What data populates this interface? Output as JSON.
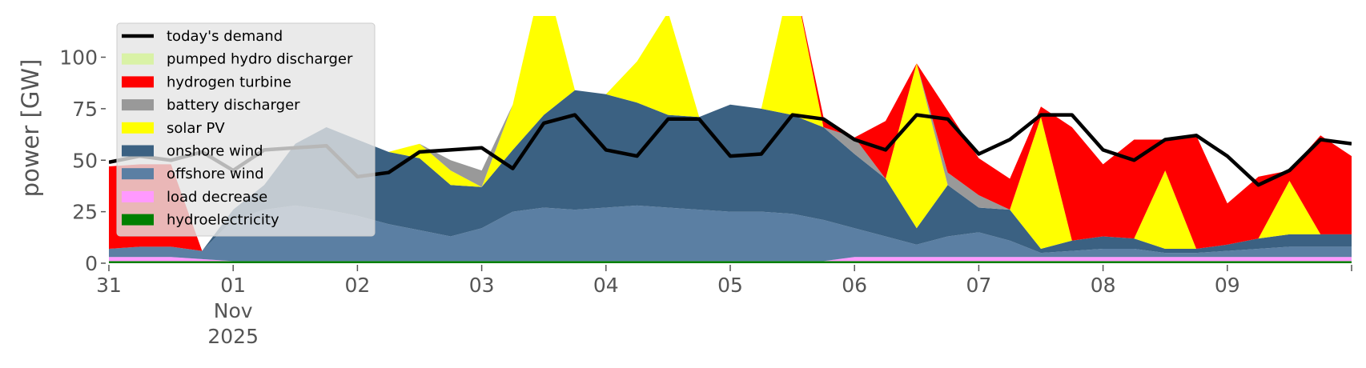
{
  "chart_data": {
    "type": "area",
    "title": "",
    "xlabel": "",
    "ylabel": "power [GW]",
    "ylim": [
      0,
      120
    ],
    "xlim": [
      "2025-10-31T00:00",
      "2025-11-10T00:00"
    ],
    "grid": false,
    "legend_position": "top-left",
    "yticks": [
      0,
      25,
      50,
      75,
      100
    ],
    "xticks": [
      {
        "x": "2025-10-31T00:00",
        "lines": [
          "31"
        ]
      },
      {
        "x": "2025-11-01T00:00",
        "lines": [
          "01",
          "Nov",
          "2025"
        ]
      },
      {
        "x": "2025-11-02T00:00",
        "lines": [
          "02"
        ]
      },
      {
        "x": "2025-11-03T00:00",
        "lines": [
          "03"
        ]
      },
      {
        "x": "2025-11-04T00:00",
        "lines": [
          "04"
        ]
      },
      {
        "x": "2025-11-05T00:00",
        "lines": [
          "05"
        ]
      },
      {
        "x": "2025-11-06T00:00",
        "lines": [
          "06"
        ]
      },
      {
        "x": "2025-11-07T00:00",
        "lines": [
          "07"
        ]
      },
      {
        "x": "2025-11-08T00:00",
        "lines": [
          "08"
        ]
      },
      {
        "x": "2025-11-09T00:00",
        "lines": [
          "09"
        ]
      }
    ],
    "x": [
      "2025-10-31T00:00",
      "2025-10-31T06:00",
      "2025-10-31T12:00",
      "2025-10-31T18:00",
      "2025-11-01T00:00",
      "2025-11-01T06:00",
      "2025-11-01T12:00",
      "2025-11-01T18:00",
      "2025-11-02T00:00",
      "2025-11-02T06:00",
      "2025-11-02T12:00",
      "2025-11-02T18:00",
      "2025-11-03T00:00",
      "2025-11-03T06:00",
      "2025-11-03T12:00",
      "2025-11-03T18:00",
      "2025-11-04T00:00",
      "2025-11-04T06:00",
      "2025-11-04T12:00",
      "2025-11-04T18:00",
      "2025-11-05T00:00",
      "2025-11-05T06:00",
      "2025-11-05T12:00",
      "2025-11-05T18:00",
      "2025-11-06T00:00",
      "2025-11-06T06:00",
      "2025-11-06T12:00",
      "2025-11-06T18:00",
      "2025-11-07T00:00",
      "2025-11-07T06:00",
      "2025-11-07T12:00",
      "2025-11-07T18:00",
      "2025-11-08T00:00",
      "2025-11-08T06:00",
      "2025-11-08T12:00",
      "2025-11-08T18:00",
      "2025-11-09T00:00",
      "2025-11-09T06:00",
      "2025-11-09T12:00",
      "2025-11-09T18:00",
      "2025-11-10T00:00"
    ],
    "series": [
      {
        "name": "hydroelectricity",
        "color": "#008000",
        "values": [
          1,
          1,
          1,
          1,
          1,
          1,
          1,
          1,
          1,
          1,
          1,
          1,
          1,
          1,
          1,
          1,
          1,
          1,
          1,
          1,
          1,
          1,
          1,
          1,
          1,
          1,
          1,
          1,
          1,
          1,
          1,
          1,
          1,
          1,
          1,
          1,
          1,
          1,
          1,
          1,
          1
        ]
      },
      {
        "name": "load decrease",
        "color": "#ff99ff",
        "values": [
          2,
          2,
          2,
          1,
          0,
          0,
          0,
          0,
          0,
          0,
          0,
          0,
          0,
          0,
          0,
          0,
          0,
          0,
          0,
          0,
          0,
          0,
          0,
          0,
          2,
          2,
          2,
          2,
          2,
          2,
          2,
          2,
          2,
          2,
          2,
          2,
          2,
          2,
          2,
          2,
          2
        ]
      },
      {
        "name": "offshore wind",
        "color": "#5b7fa3",
        "values": [
          4,
          5,
          5,
          4,
          20,
          25,
          27,
          25,
          22,
          18,
          15,
          12,
          16,
          24,
          26,
          25,
          26,
          27,
          26,
          25,
          24,
          24,
          23,
          20,
          14,
          10,
          6,
          10,
          12,
          8,
          2,
          3,
          4,
          4,
          2,
          2,
          3,
          4,
          5,
          5,
          5
        ]
      },
      {
        "name": "onshore wind",
        "color": "#3b6182",
        "values": [
          0,
          0,
          0,
          0,
          5,
          12,
          30,
          40,
          37,
          35,
          35,
          25,
          20,
          30,
          45,
          58,
          55,
          50,
          45,
          45,
          52,
          50,
          48,
          45,
          36,
          28,
          8,
          25,
          12,
          15,
          2,
          5,
          6,
          5,
          2,
          2,
          3,
          5,
          6,
          6,
          6
        ]
      },
      {
        "name": "solar PV",
        "color": "#ffff00",
        "values": [
          0,
          0,
          0,
          0,
          0,
          0,
          0,
          0,
          0,
          0,
          7,
          7,
          0,
          22,
          70,
          0,
          0,
          20,
          50,
          0,
          0,
          0,
          70,
          0,
          0,
          0,
          80,
          0,
          0,
          0,
          64,
          0,
          0,
          0,
          38,
          0,
          0,
          0,
          26,
          0,
          0
        ]
      },
      {
        "name": "battery discharger",
        "color": "#999999",
        "values": [
          0,
          0,
          0,
          0,
          0,
          0,
          0,
          0,
          0,
          0,
          0,
          5,
          8,
          0,
          0,
          0,
          0,
          0,
          0,
          0,
          0,
          0,
          0,
          0,
          8,
          0,
          0,
          6,
          6,
          0,
          0,
          0,
          0,
          0,
          0,
          0,
          0,
          0,
          0,
          0,
          0
        ]
      },
      {
        "name": "hydrogen turbine",
        "color": "#ff0000",
        "values": [
          40,
          40,
          40,
          0,
          0,
          0,
          0,
          0,
          0,
          0,
          0,
          0,
          0,
          0,
          0,
          0,
          0,
          0,
          0,
          0,
          0,
          0,
          0,
          5,
          0,
          28,
          0,
          30,
          18,
          15,
          5,
          55,
          35,
          48,
          15,
          55,
          20,
          30,
          5,
          48,
          38
        ]
      },
      {
        "name": "pumped hydro discharger",
        "color": "#d9f2a6",
        "values": [
          0,
          0,
          0,
          0,
          0,
          0,
          0,
          0,
          0,
          0,
          0,
          0,
          0,
          0,
          0,
          0,
          0,
          0,
          0,
          0,
          0,
          0,
          0,
          0,
          0,
          0,
          0,
          0,
          0,
          0,
          0,
          0,
          0,
          0,
          0,
          0,
          0,
          0,
          0,
          0,
          0
        ]
      }
    ],
    "demand": {
      "name": "today's demand",
      "color": "#000000",
      "values": [
        49,
        52,
        50,
        54,
        45,
        55,
        56,
        57,
        42,
        44,
        54,
        55,
        56,
        46,
        68,
        72,
        55,
        52,
        70,
        70,
        52,
        53,
        72,
        70,
        60,
        55,
        72,
        70,
        53,
        60,
        72,
        72,
        55,
        50,
        60,
        62,
        52,
        38,
        45,
        60,
        58
      ]
    },
    "legend_order": [
      "today's demand",
      "pumped hydro discharger",
      "hydrogen turbine",
      "battery discharger",
      "solar PV",
      "onshore wind",
      "offshore wind",
      "load decrease",
      "hydroelectricity"
    ]
  }
}
